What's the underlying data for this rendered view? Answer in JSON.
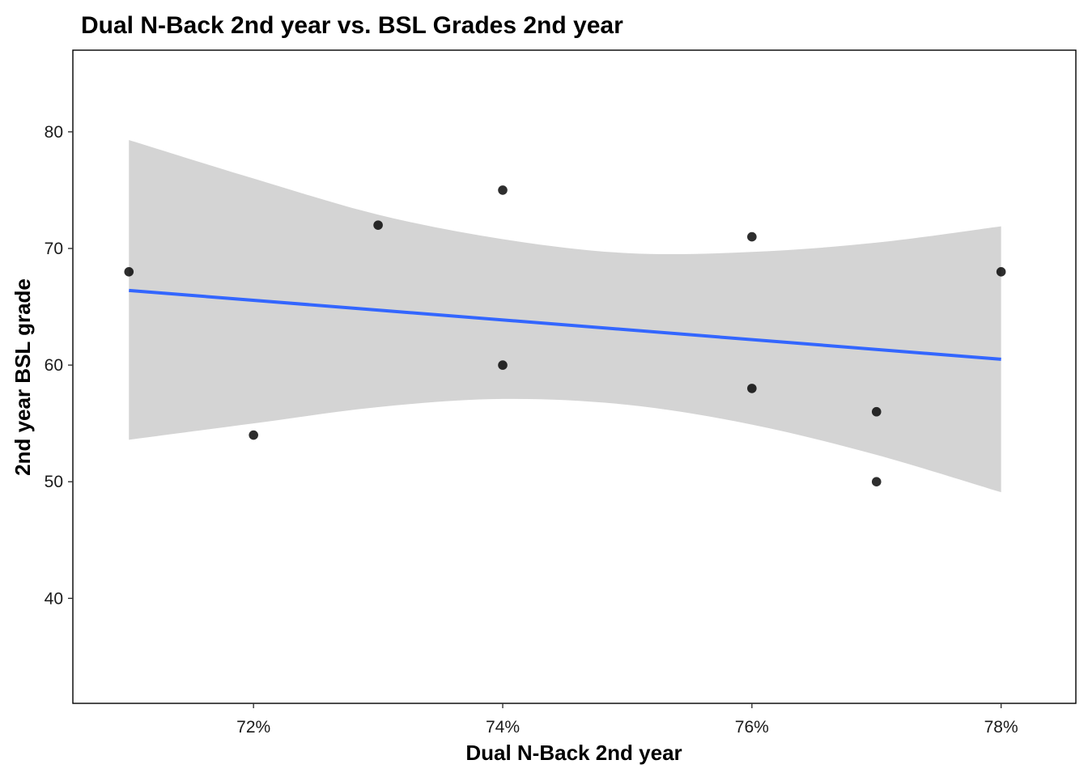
{
  "chart_data": {
    "type": "scatter",
    "title": "Dual N-Back 2nd year vs. BSL Grades 2nd year",
    "xlabel": "Dual N-Back 2nd year",
    "ylabel": "2nd year BSL grade",
    "xlim": [
      0.7055,
      0.786
    ],
    "ylim": [
      31.0,
      87.0
    ],
    "x_ticks": [
      0.72,
      0.74,
      0.76,
      0.78
    ],
    "x_tick_labels": [
      "72%",
      "74%",
      "76%",
      "78%"
    ],
    "y_ticks": [
      40,
      50,
      60,
      70,
      80
    ],
    "y_tick_labels": [
      "40",
      "50",
      "60",
      "70",
      "80"
    ],
    "grid": false,
    "points": [
      {
        "x": 0.71,
        "y": 68
      },
      {
        "x": 0.72,
        "y": 54
      },
      {
        "x": 0.73,
        "y": 72
      },
      {
        "x": 0.74,
        "y": 75
      },
      {
        "x": 0.74,
        "y": 60
      },
      {
        "x": 0.76,
        "y": 71
      },
      {
        "x": 0.76,
        "y": 58
      },
      {
        "x": 0.77,
        "y": 56
      },
      {
        "x": 0.77,
        "y": 50
      },
      {
        "x": 0.78,
        "y": 68
      }
    ],
    "fit_line": {
      "x": [
        0.71,
        0.78
      ],
      "y": [
        66.4,
        60.5
      ]
    },
    "confidence_band": {
      "x": [
        0.71,
        0.72,
        0.73,
        0.74,
        0.75,
        0.76,
        0.77,
        0.78
      ],
      "upper": [
        79.3,
        76.0,
        72.9,
        70.8,
        69.6,
        69.7,
        70.5,
        71.9
      ],
      "lower": [
        53.6,
        55.0,
        56.4,
        57.1,
        56.6,
        54.9,
        52.3,
        49.1
      ]
    },
    "colors": {
      "band": "#d4d4d4",
      "line": "#3366ff",
      "points": "#000000",
      "panel_border": "#000000"
    }
  }
}
